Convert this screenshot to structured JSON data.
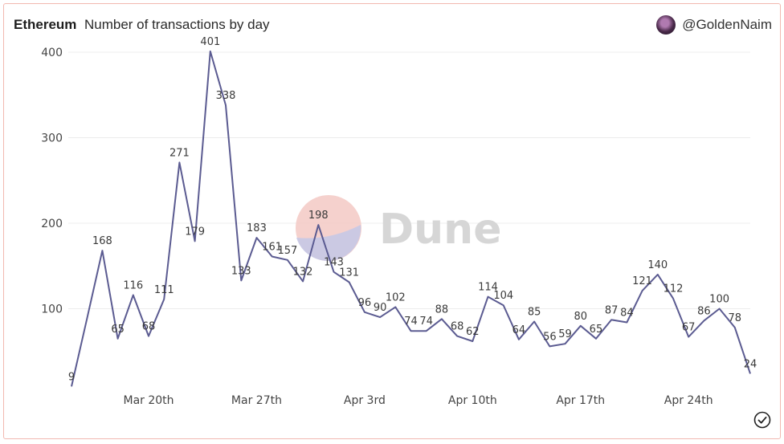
{
  "header": {
    "chain": "Ethereum",
    "title": "Number of transactions by day",
    "author": "@GoldenNaim"
  },
  "watermark": "Dune",
  "icons": {
    "avatar": "avatar-icon",
    "check": "check-circle-icon"
  },
  "colors": {
    "line": "#5b5b91",
    "border": "#f2b8b0",
    "watermark_red": "#f3c9c4",
    "watermark_blue": "#c7c8e6"
  },
  "chart_data": {
    "type": "line",
    "title": "Number of transactions by day",
    "xlabel": "",
    "ylabel": "",
    "ylim": [
      0,
      420
    ],
    "yticks": [
      100,
      200,
      300,
      400
    ],
    "xtick_labels": [
      {
        "label": "Mar 20th",
        "index": 5
      },
      {
        "label": "Mar 27th",
        "index": 12
      },
      {
        "label": "Apr 3rd",
        "index": 19
      },
      {
        "label": "Apr 10th",
        "index": 26
      },
      {
        "label": "Apr 17th",
        "index": 33
      },
      {
        "label": "Apr 24th",
        "index": 40
      }
    ],
    "series": [
      {
        "name": "transactions",
        "values": [
          9,
          88,
          168,
          65,
          116,
          68,
          111,
          271,
          179,
          401,
          338,
          133,
          183,
          161,
          157,
          132,
          198,
          143,
          131,
          96,
          90,
          102,
          74,
          74,
          88,
          68,
          62,
          114,
          104,
          64,
          85,
          56,
          59,
          80,
          65,
          87,
          84,
          121,
          140,
          112,
          67,
          86,
          100,
          78,
          24
        ],
        "labels": [
          "9",
          "",
          "168",
          "65",
          "116",
          "68",
          "111",
          "271",
          "179",
          "401",
          "338",
          "133",
          "183",
          "161",
          "157",
          "132",
          "198",
          "143",
          "131",
          "96",
          "90",
          "102",
          "74",
          "74",
          "88",
          "68",
          "62",
          "114",
          "104",
          "64",
          "85",
          "56",
          "59",
          "80",
          "65",
          "87",
          "84",
          "121",
          "140",
          "112",
          "67",
          "86",
          "100",
          "78",
          "24"
        ]
      }
    ]
  }
}
